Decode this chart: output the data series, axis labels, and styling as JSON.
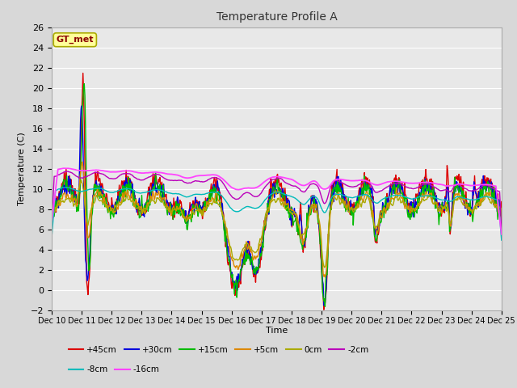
{
  "title": "Temperature Profile A",
  "xlabel": "Time",
  "ylabel": "Temperature (C)",
  "ylim": [
    -2,
    26
  ],
  "yticks": [
    -2,
    0,
    2,
    4,
    6,
    8,
    10,
    12,
    14,
    16,
    18,
    20,
    22,
    24,
    26
  ],
  "x_tick_days": [
    10,
    11,
    12,
    13,
    14,
    15,
    16,
    17,
    18,
    19,
    20,
    21,
    22,
    23,
    24,
    25
  ],
  "series_names": [
    "+45cm",
    "+30cm",
    "+15cm",
    "+5cm",
    "0cm",
    "-2cm",
    "-8cm",
    "-16cm"
  ],
  "series_colors": [
    "#dd0000",
    "#0000dd",
    "#00bb00",
    "#dd8800",
    "#aaaa00",
    "#bb00bb",
    "#00bbbb",
    "#ff44ff"
  ],
  "series_lw": [
    1.0,
    1.0,
    1.0,
    1.0,
    1.0,
    1.0,
    1.0,
    1.3
  ],
  "plot_bg_color": "#e8e8e8",
  "grid_color": "#ffffff",
  "annotation_text": "GT_met",
  "fig_bg": "#d8d8d8"
}
